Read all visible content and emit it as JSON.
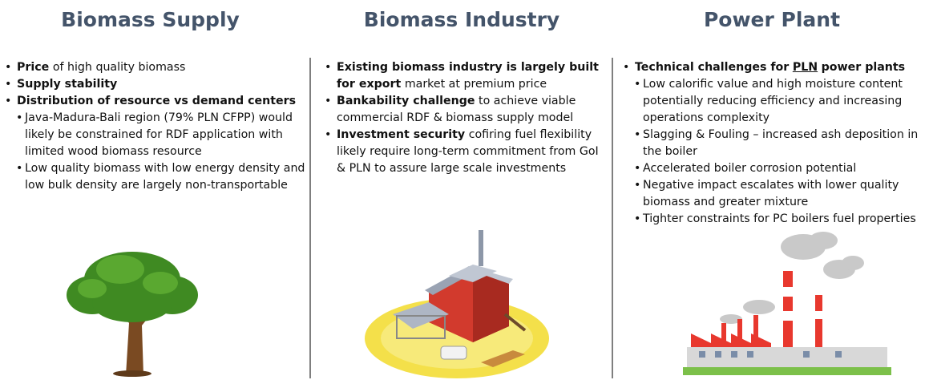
{
  "columns": [
    {
      "title": "Biomass Supply",
      "bullets": [
        {
          "bold": "Price",
          "rest": "of high quality biomass"
        },
        {
          "bold": "Supply stability"
        },
        {
          "bold": "Distribution of resource vs demand centers",
          "sub": [
            "Java-Madura-Bali region (79% PLN CFPP) would likely be constrained for RDF application with limited wood biomass resource",
            "Low quality biomass with low energy density and low bulk density are largely non-transportable"
          ]
        }
      ]
    },
    {
      "title": "Biomass Industry",
      "bullets": [
        {
          "bold": "Existing biomass industry is largely built for export",
          "rest": "market at premium price"
        },
        {
          "bold": "Bankability challenge",
          "rest": "to achieve viable commercial RDF & biomass supply model"
        },
        {
          "bold": "Investment security",
          "rest": "cofiring fuel flexibility likely require long-term commitment from GoI & PLN to assure large scale investments"
        }
      ]
    },
    {
      "title": "Power Plant",
      "bullets": [
        {
          "bold": "Technical challenges for",
          "underline": "PLN",
          "bold2": "power plants",
          "sub": [
            "Low calorific value and high moisture content potentially reducing efficiency and increasing operations complexity",
            "Slagging & Fouling – increased ash deposition in the boiler",
            "Accelerated boiler corrosion potential",
            "Negative impact escalates with lower quality biomass and greater mixture",
            "Tighter constraints for PC boilers fuel properties"
          ]
        }
      ]
    }
  ]
}
